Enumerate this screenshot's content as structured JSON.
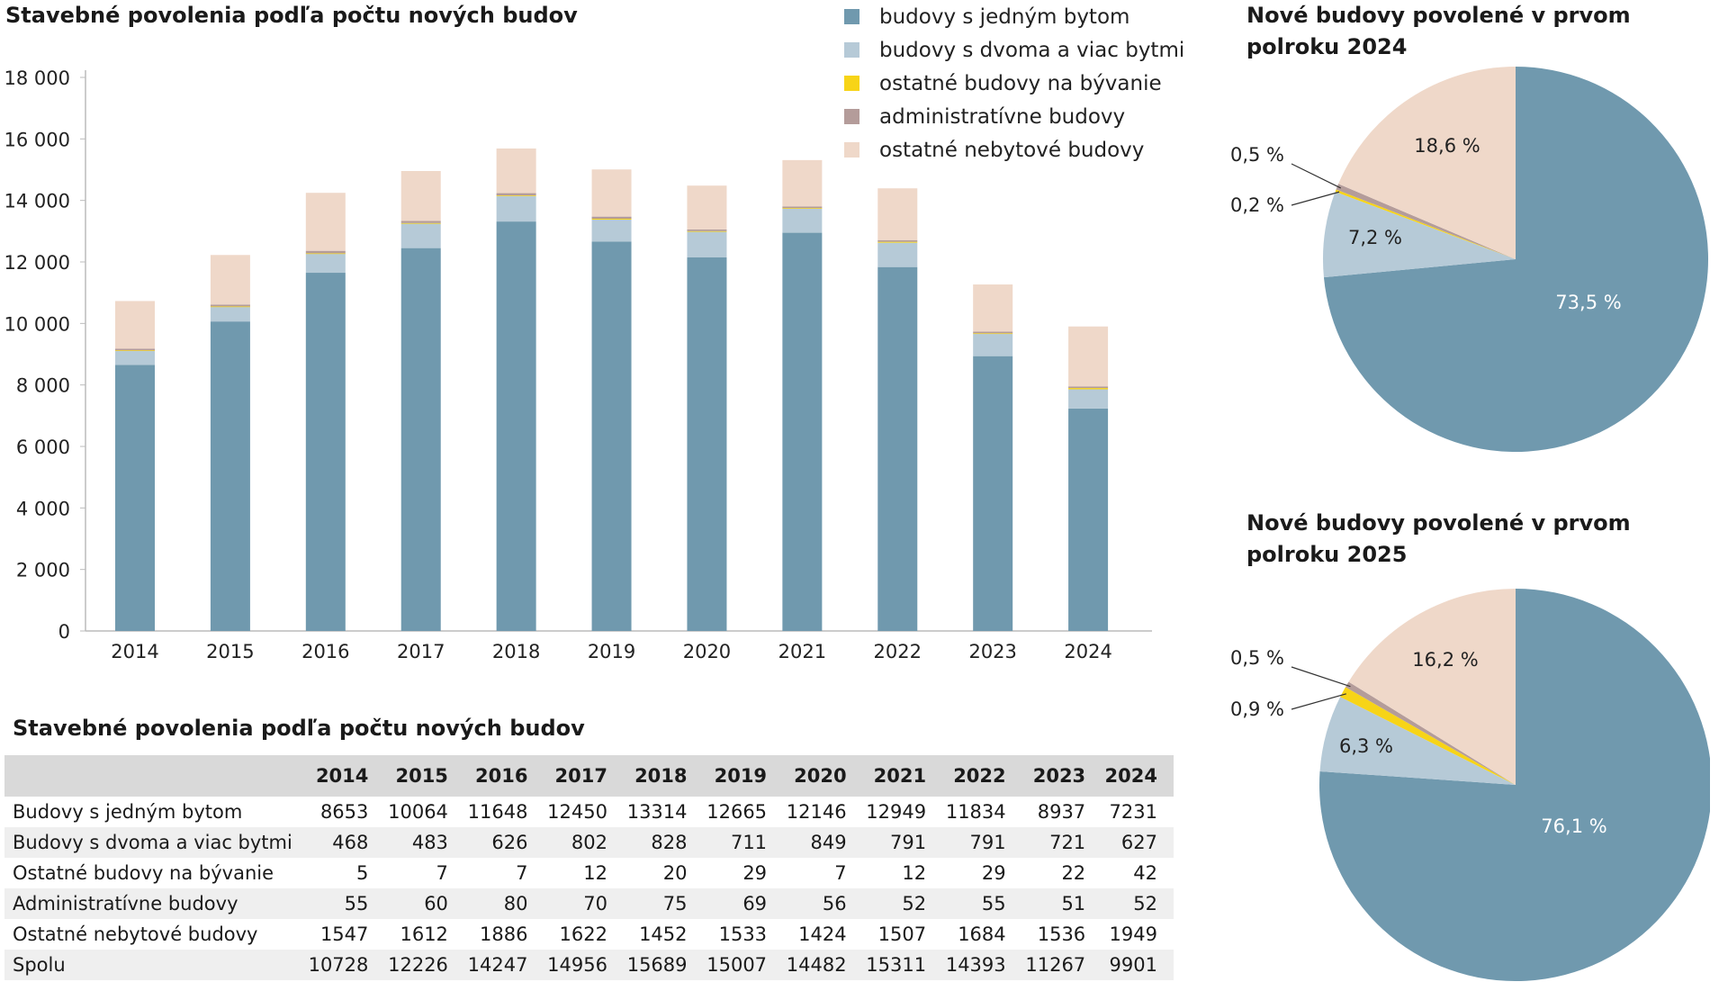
{
  "colors": {
    "single": "#7099ae",
    "multi": "#b6cad7",
    "other_res": "#f7d417",
    "admin": "#b49c9a",
    "other_nonres": "#efd8c9",
    "axis": "#bbbbbb"
  },
  "bar_title": "Stavebné povolenia podľa počtu nových budov",
  "legend": [
    {
      "label": "budovy s jedným bytom",
      "color_key": "single"
    },
    {
      "label": "budovy s dvoma a viac bytmi",
      "color_key": "multi"
    },
    {
      "label": "ostatné budovy na bývanie",
      "color_key": "other_res"
    },
    {
      "label": "administratívne budovy",
      "color_key": "admin"
    },
    {
      "label": "ostatné nebytové budovy",
      "color_key": "other_nonres"
    }
  ],
  "chart_data": [
    {
      "type": "bar",
      "stacked": true,
      "title": "Stavebné povolenia podľa počtu nových budov",
      "categories": [
        "2014",
        "2015",
        "2016",
        "2017",
        "2018",
        "2019",
        "2020",
        "2021",
        "2022",
        "2023",
        "2024"
      ],
      "ylim": [
        0,
        18000
      ],
      "yticks": [
        0,
        2000,
        4000,
        6000,
        8000,
        10000,
        12000,
        14000,
        16000,
        18000
      ],
      "ytick_labels": [
        "0",
        "2 000",
        "4 000",
        "6 000",
        "8 000",
        "10 000",
        "12 000",
        "14 000",
        "16 000",
        "18 000"
      ],
      "grid": false,
      "legend_position": "top-right",
      "series": [
        {
          "name": "budovy s jedným bytom",
          "color_key": "single",
          "values": [
            8653,
            10064,
            11648,
            12450,
            13314,
            12665,
            12146,
            12949,
            11834,
            8937,
            7231
          ]
        },
        {
          "name": "budovy s dvoma a viac bytmi",
          "color_key": "multi",
          "values": [
            468,
            483,
            626,
            802,
            828,
            711,
            849,
            791,
            791,
            721,
            627
          ]
        },
        {
          "name": "ostatné budovy na bývanie",
          "color_key": "other_res",
          "values": [
            5,
            7,
            7,
            12,
            20,
            29,
            7,
            12,
            29,
            22,
            42
          ]
        },
        {
          "name": "administratívne budovy",
          "color_key": "admin",
          "values": [
            55,
            60,
            80,
            70,
            75,
            69,
            56,
            52,
            55,
            51,
            52
          ]
        },
        {
          "name": "ostatné nebytové budovy",
          "color_key": "other_nonres",
          "values": [
            1547,
            1612,
            1886,
            1622,
            1452,
            1533,
            1424,
            1507,
            1684,
            1536,
            1949
          ]
        }
      ]
    },
    {
      "type": "pie",
      "title": "Nové budovy povolené v prvom polroku 2024",
      "slices": [
        {
          "name": "budovy s jedným bytom",
          "color_key": "single",
          "value": 73.5,
          "label": "73,5 %"
        },
        {
          "name": "budovy s dvoma a viac bytmi",
          "color_key": "multi",
          "value": 7.2,
          "label": "7,2 %"
        },
        {
          "name": "ostatné budovy na bývanie",
          "color_key": "other_res",
          "value": 0.2,
          "label": "0,2 %"
        },
        {
          "name": "administratívne budovy",
          "color_key": "admin",
          "value": 0.5,
          "label": "0,5 %"
        },
        {
          "name": "ostatné nebytové budovy",
          "color_key": "other_nonres",
          "value": 18.6,
          "label": "18,6 %"
        }
      ]
    },
    {
      "type": "pie",
      "title": "Nové budovy povolené v prvom polroku 2025",
      "slices": [
        {
          "name": "budovy s jedným bytom",
          "color_key": "single",
          "value": 76.1,
          "label": "76,1 %"
        },
        {
          "name": "budovy s dvoma a viac bytmi",
          "color_key": "multi",
          "value": 6.3,
          "label": "6,3 %"
        },
        {
          "name": "ostatné budovy na bývanie",
          "color_key": "other_res",
          "value": 0.9,
          "label": "0,9 %"
        },
        {
          "name": "administratívne budovy",
          "color_key": "admin",
          "value": 0.5,
          "label": "0,5 %"
        },
        {
          "name": "ostatné nebytové budovy",
          "color_key": "other_nonres",
          "value": 16.2,
          "label": "16,2 %"
        }
      ]
    }
  ],
  "table": {
    "title": "Stavebné povolenia podľa počtu nových budov",
    "years": [
      "2014",
      "2015",
      "2016",
      "2017",
      "2018",
      "2019",
      "2020",
      "2021",
      "2022",
      "2023",
      "2024"
    ],
    "rows": [
      {
        "label": "Budovy s jedným bytom",
        "values": [
          "8653",
          "10064",
          "11648",
          "12450",
          "13314",
          "12665",
          "12146",
          "12949",
          "11834",
          "8937",
          "7231"
        ]
      },
      {
        "label": "Budovy s dvoma a viac bytmi",
        "values": [
          "468",
          "483",
          "626",
          "802",
          "828",
          "711",
          "849",
          "791",
          "791",
          "721",
          "627"
        ]
      },
      {
        "label": "Ostatné budovy na bývanie",
        "values": [
          "5",
          "7",
          "7",
          "12",
          "20",
          "29",
          "7",
          "12",
          "29",
          "22",
          "42"
        ]
      },
      {
        "label": "Administratívne budovy",
        "values": [
          "55",
          "60",
          "80",
          "70",
          "75",
          "69",
          "56",
          "52",
          "55",
          "51",
          "52"
        ]
      },
      {
        "label": "Ostatné nebytové budovy",
        "values": [
          "1547",
          "1612",
          "1886",
          "1622",
          "1452",
          "1533",
          "1424",
          "1507",
          "1684",
          "1536",
          "1949"
        ]
      },
      {
        "label": "Spolu",
        "values": [
          "10728",
          "12226",
          "14247",
          "14956",
          "15689",
          "15007",
          "14482",
          "15311",
          "14393",
          "11267",
          "9901"
        ]
      }
    ]
  }
}
